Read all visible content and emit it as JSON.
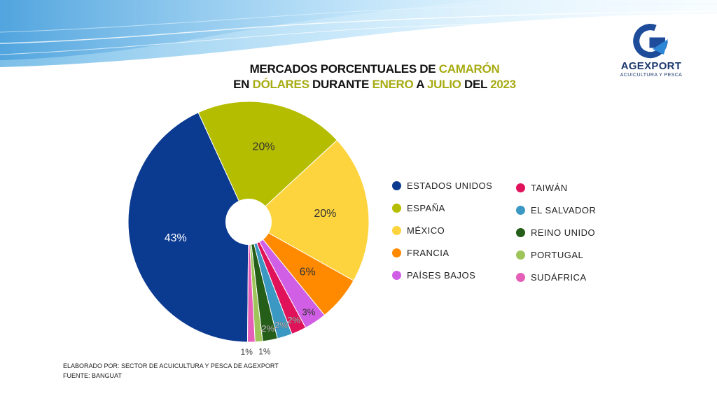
{
  "title": {
    "line1": [
      {
        "text": "MERCADOS PORCENTUALES DE ",
        "hl": false
      },
      {
        "text": "CAMARÓN",
        "hl": true
      }
    ],
    "line2": [
      {
        "text": "EN ",
        "hl": false
      },
      {
        "text": "DÓLARES",
        "hl": true
      },
      {
        "text": " DURANTE ",
        "hl": false
      },
      {
        "text": "ENERO",
        "hl": true
      },
      {
        "text": " A ",
        "hl": false
      },
      {
        "text": "JULIO",
        "hl": true
      },
      {
        "text": " DEL ",
        "hl": false
      },
      {
        "text": "2023",
        "hl": true
      }
    ]
  },
  "logo": {
    "name": "AGEXPORT",
    "subtitle": "ACUICULTURA Y PESCA",
    "icon": "agexport-g-logo"
  },
  "footer": {
    "line1": "ELABORADO POR: SECTOR DE ACUICULTURA Y PESCA DE AGEXPORT",
    "line2": "FUENTE:  BANGUAT"
  },
  "chart_data": {
    "type": "pie",
    "donut_hole": true,
    "slices": [
      {
        "label": "ESTADOS UNIDOS",
        "value": 43,
        "display": "43%",
        "color": "#0b3a91"
      },
      {
        "label": "ESPAÑA",
        "value": 20,
        "display": "20%",
        "color": "#b5bd00"
      },
      {
        "label": "MÉXICO",
        "value": 20,
        "display": "20%",
        "color": "#fdd43d"
      },
      {
        "label": "FRANCIA",
        "value": 6,
        "display": "6%",
        "color": "#ff8a00"
      },
      {
        "label": "PAÍSES BAJOS",
        "value": 3,
        "display": "3%",
        "color": "#d05fe5"
      },
      {
        "label": "TAIWÁN",
        "value": 2,
        "display": "2%",
        "color": "#e0135a"
      },
      {
        "label": "EL SALVADOR",
        "value": 2,
        "display": "2%",
        "color": "#3a98c2"
      },
      {
        "label": "REINO UNIDO",
        "value": 2,
        "display": "2%",
        "color": "#245e18"
      },
      {
        "label": "PORTUGAL",
        "value": 1,
        "display": "1%",
        "color": "#9ec55a"
      },
      {
        "label": "SUDÁFRICA",
        "value": 1,
        "display": "1%",
        "color": "#e55fb8"
      }
    ],
    "legend": {
      "columns": [
        [
          "ESTADOS UNIDOS",
          "ESPAÑA",
          "MÉXICO",
          "FRANCIA",
          "PAÍSES BAJOS"
        ],
        [
          "TAIWÁN",
          "EL SALVADOR",
          "REINO UNIDO",
          "PORTUGAL",
          "SUDÁFRICA"
        ]
      ],
      "position": "right"
    }
  }
}
